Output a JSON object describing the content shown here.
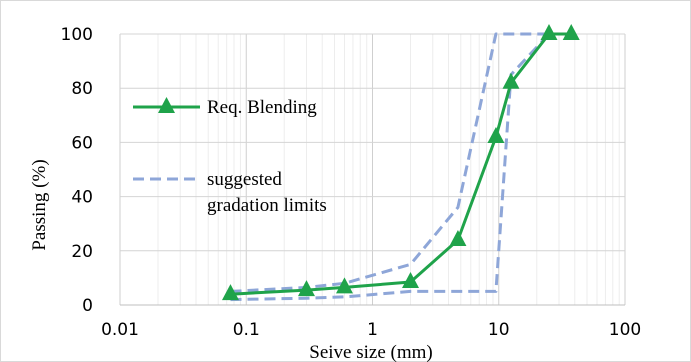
{
  "chart_data": {
    "type": "line",
    "x_scale": "log",
    "xlim": [
      0.01,
      100
    ],
    "ylim": [
      0,
      100
    ],
    "xlabel": "Seive size (mm)",
    "ylabel": "Passing (%)",
    "x_ticks": [
      "0.01",
      "0.1",
      "1",
      "10",
      "100"
    ],
    "y_ticks": [
      "0",
      "20",
      "40",
      "60",
      "80",
      "100"
    ],
    "grid": true,
    "legend_position": "left",
    "series": [
      {
        "name": "Req. Blending",
        "style": "solid",
        "marker": "triangle",
        "color": "#1fa34a",
        "x": [
          0.075,
          0.3,
          0.6,
          2.0,
          4.75,
          9.5,
          12.5,
          25,
          37.5
        ],
        "y": [
          4,
          5.5,
          6.5,
          8.5,
          24,
          62,
          82,
          100,
          100
        ]
      },
      {
        "name": "suggested gradation limits",
        "legend_lines": [
          "suggested",
          "gradation limits"
        ],
        "style": "dashed",
        "color": "#8ea6d8",
        "x": [
          0.075,
          0.3,
          0.6,
          2.0,
          4.75,
          9.5,
          25,
          37.5
        ],
        "y": [
          5,
          6.5,
          8,
          15,
          36,
          100,
          100,
          100
        ]
      },
      {
        "name": "",
        "style": "dashed",
        "color": "#8ea6d8",
        "x": [
          0.075,
          0.3,
          0.6,
          2.0,
          4.75,
          9.5,
          12.5,
          25,
          37.5
        ],
        "y": [
          2,
          2.5,
          3,
          5,
          5,
          5,
          85,
          100,
          100
        ]
      }
    ]
  }
}
